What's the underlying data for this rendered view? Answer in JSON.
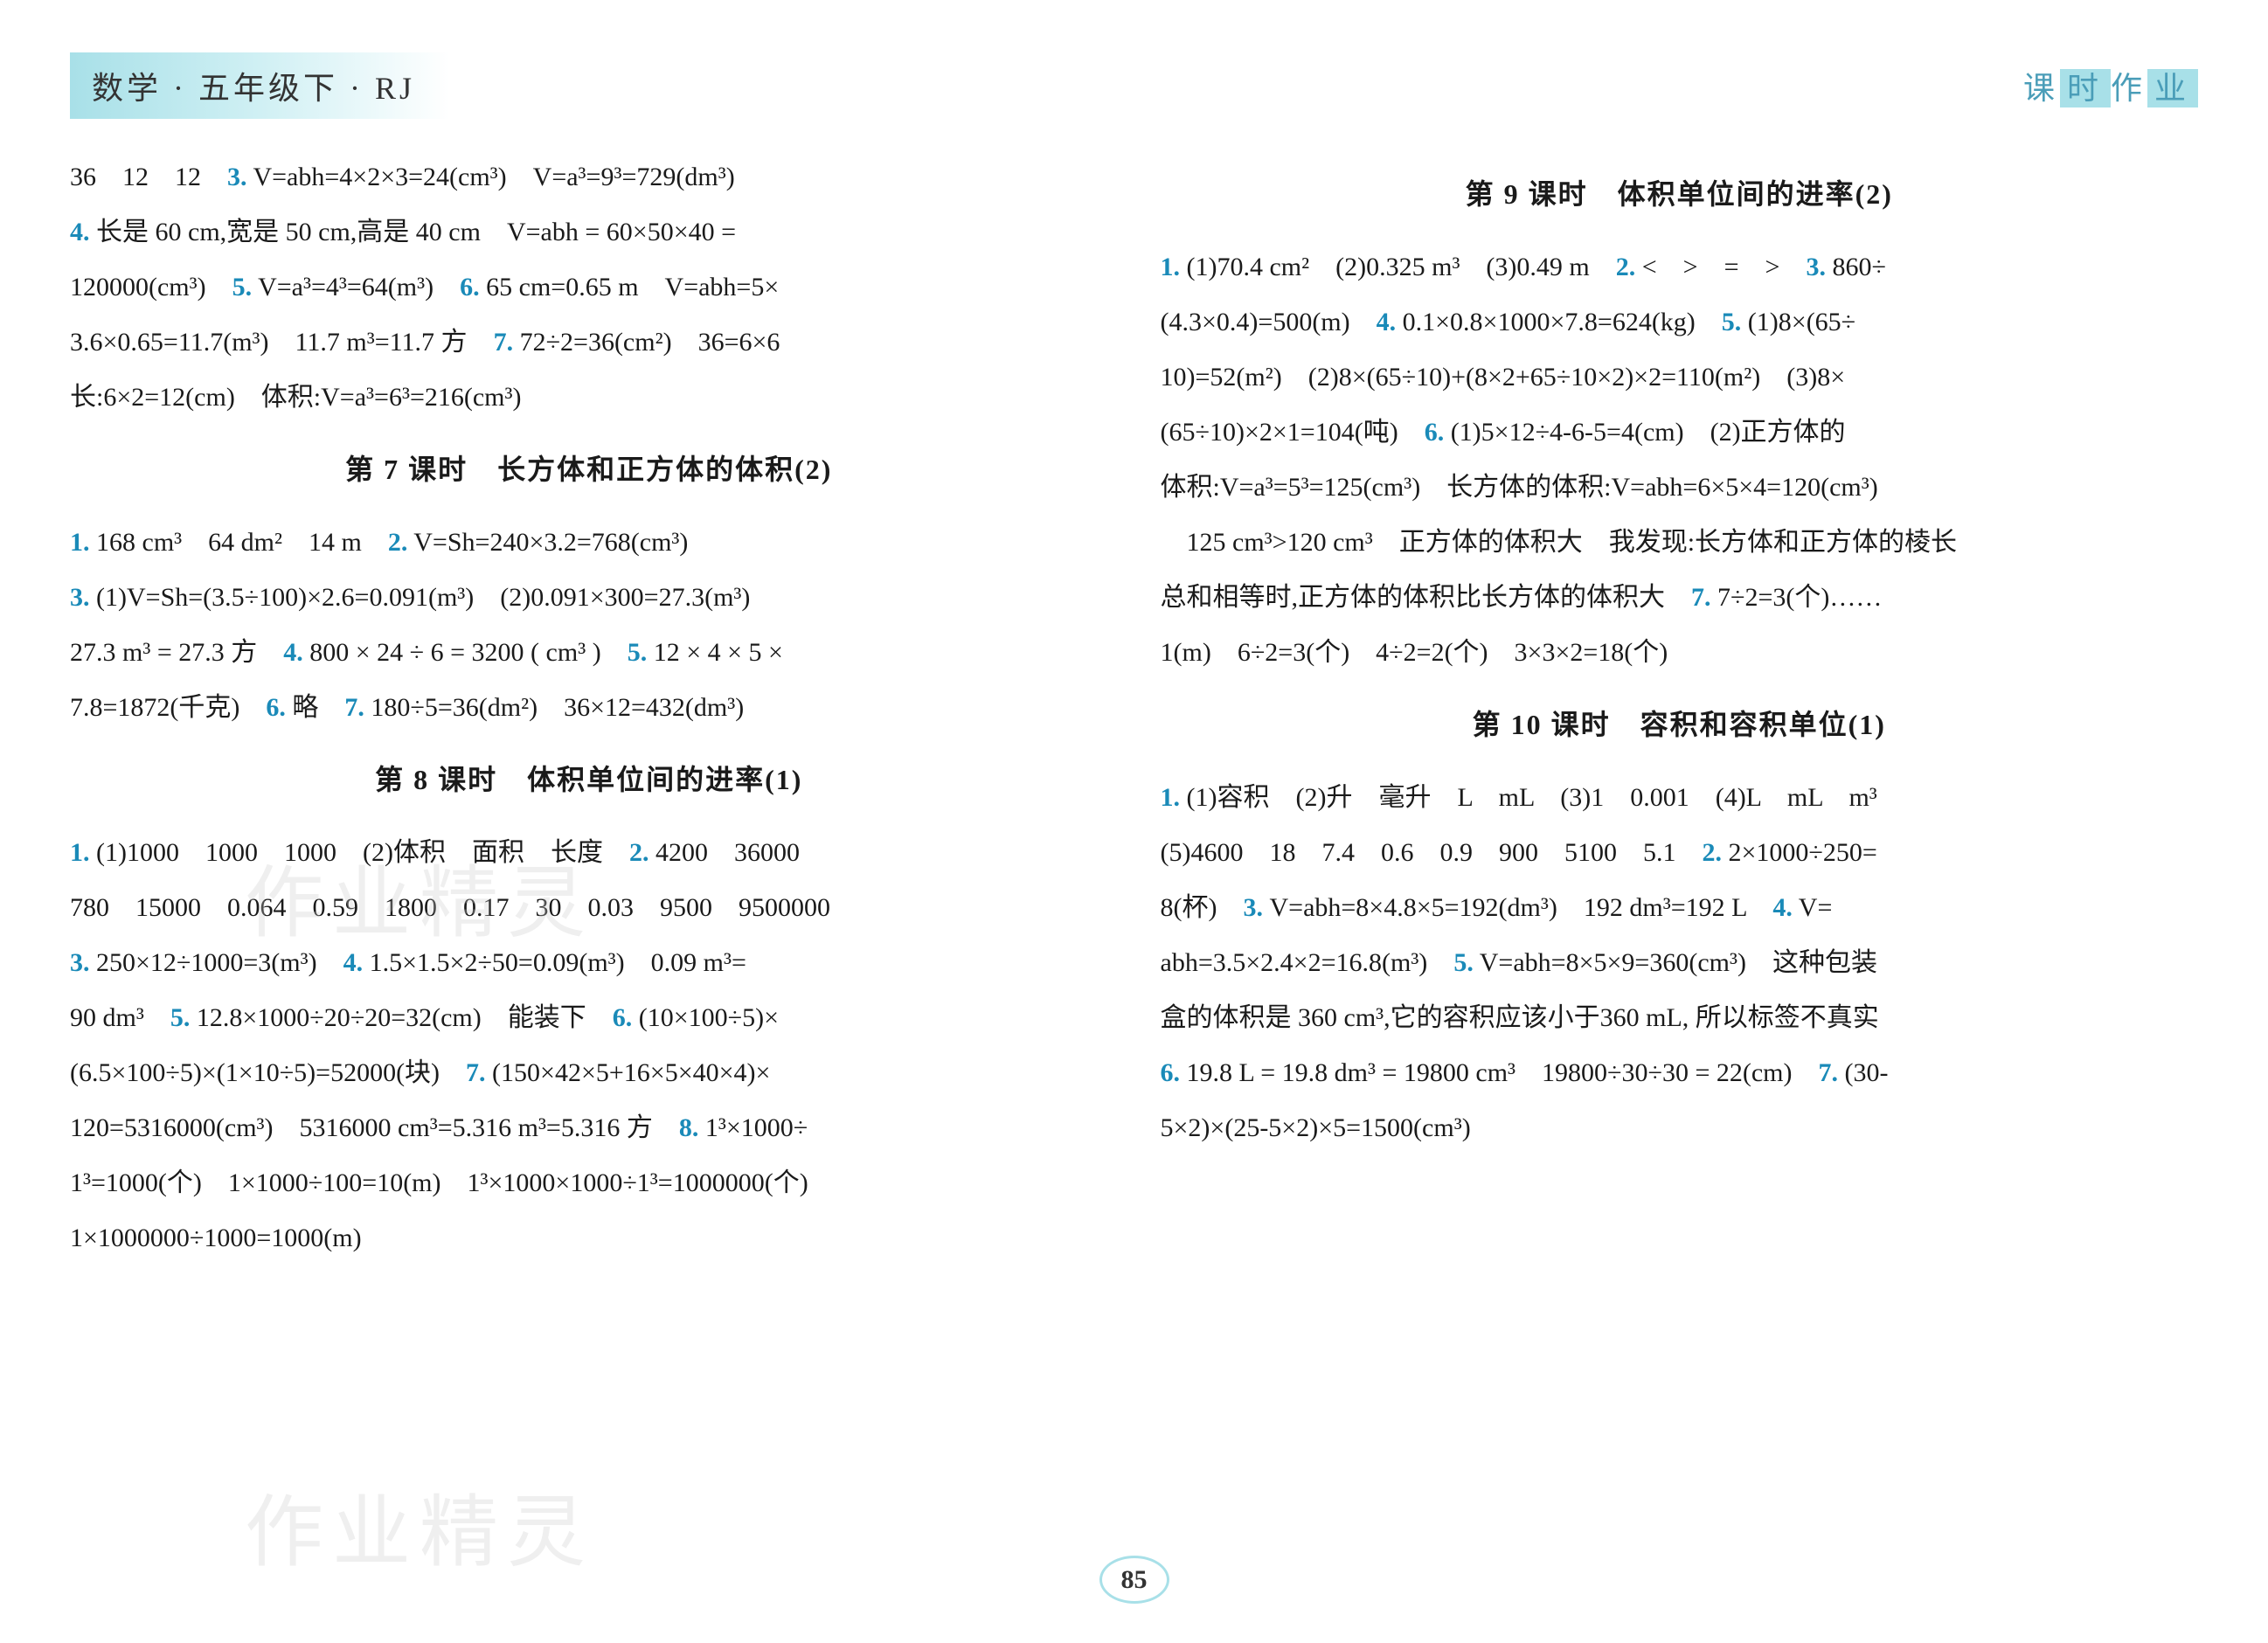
{
  "header": {
    "left": "数学 · 五年级下 · RJ",
    "right_prefix": "课",
    "right_hl1": "时",
    "right_mid": "作",
    "right_hl2": "业"
  },
  "left_column": {
    "line1_pre": "36　12　12　",
    "line1_num": "3.",
    "line1_post": " V=abh=4×2×3=24(cm³)　V=a³=9³=729(dm³)",
    "line2_num": "4.",
    "line2_post": " 长是 60 cm,宽是 50 cm,高是 40 cm　V=abh = 60×50×40 =",
    "line3_pre": "120000(cm³)　",
    "line3_num": "5.",
    "line3_mid": " V=a³=4³=64(m³)　",
    "line3_num2": "6.",
    "line3_post": " 65 cm=0.65 m　V=abh=5×",
    "line4_pre": "3.6×0.65=11.7(m³)　11.7 m³=11.7 方　",
    "line4_num": "7.",
    "line4_post": " 72÷2=36(cm²)　36=6×6",
    "line5": "长:6×2=12(cm)　体积:V=a³=6³=216(cm³)",
    "title7": "第 7 课时　长方体和正方体的体积(2)",
    "l7_1_num": "1.",
    "l7_1": " 168 cm³　64 dm²　14 m　",
    "l7_2_num": "2.",
    "l7_2": " V=Sh=240×3.2=768(cm³)",
    "l7_3_num": "3.",
    "l7_3": " (1)V=Sh=(3.5÷100)×2.6=0.091(m³)　(2)0.091×300=27.3(m³)",
    "l7_4_pre": "27.3 m³ = 27.3 方　",
    "l7_4_num": "4.",
    "l7_4_mid": " 800 × 24 ÷ 6 = 3200 ( cm³ )　",
    "l7_5_num": "5.",
    "l7_5": " 12 × 4 × 5 ×",
    "l7_6_pre": "7.8=1872(千克)　",
    "l7_6_num": "6.",
    "l7_6_mid": " 略　",
    "l7_7_num": "7.",
    "l7_7": " 180÷5=36(dm²)　36×12=432(dm³)",
    "title8": "第 8 课时　体积单位间的进率(1)",
    "l8_1_num": "1.",
    "l8_1": " (1)1000　1000　1000　(2)体积　面积　长度　",
    "l8_2_num": "2.",
    "l8_2": " 4200　36000",
    "l8_line2": "780　15000　0.064　0.59　1800　0.17　30　0.03　9500　9500000",
    "l8_3_num": "3.",
    "l8_3": " 250×12÷1000=3(m³)　",
    "l8_4_num": "4.",
    "l8_4": " 1.5×1.5×2÷50=0.09(m³)　0.09 m³=",
    "l8_line4_pre": "90 dm³　",
    "l8_5_num": "5.",
    "l8_5": " 12.8×1000÷20÷20=32(cm)　能装下　",
    "l8_6_num": "6.",
    "l8_6": " (10×100÷5)×",
    "l8_line5_pre": "(6.5×100÷5)×(1×10÷5)=52000(块)　",
    "l8_7_num": "7.",
    "l8_7": " (150×42×5+16×5×40×4)×",
    "l8_line6_pre": "120=5316000(cm³)　5316000 cm³=5.316 m³=5.316 方　",
    "l8_8_num": "8.",
    "l8_8": " 1³×1000÷",
    "l8_line7": "1³=1000(个)　1×1000÷100=10(m)　1³×1000×1000÷1³=1000000(个)",
    "l8_line8": "1×1000000÷1000=1000(m)"
  },
  "right_column": {
    "title9": "第 9 课时　体积单位间的进率(2)",
    "l9_1_num": "1.",
    "l9_1": " (1)70.4 cm²　(2)0.325 m³　(3)0.49 m　",
    "l9_2_num": "2.",
    "l9_2": " <　>　=　>　",
    "l9_3_num": "3.",
    "l9_3": " 860÷",
    "l9_line2_pre": "(4.3×0.4)=500(m)　",
    "l9_4_num": "4.",
    "l9_4": " 0.1×0.8×1000×7.8=624(kg)　",
    "l9_5_num": "5.",
    "l9_5": " (1)8×(65÷",
    "l9_line3": "10)=52(m²)　(2)8×(65÷10)+(8×2+65÷10×2)×2=110(m²)　(3)8×",
    "l9_line4_pre": "(65÷10)×2×1=104(吨)　",
    "l9_6_num": "6.",
    "l9_6": " (1)5×12÷4-6-5=4(cm)　(2)正方体的",
    "l9_line5": "体积:V=a³=5³=125(cm³)　长方体的体积:V=abh=6×5×4=120(cm³)",
    "l9_line6": "　125 cm³>120 cm³　正方体的体积大　我发现:长方体和正方体的棱长",
    "l9_line7_pre": "总和相等时,正方体的体积比长方体的体积大　",
    "l9_7_num": "7.",
    "l9_7": " 7÷2=3(个)……",
    "l9_line8": "1(m)　6÷2=3(个)　4÷2=2(个)　3×3×2=18(个)",
    "title10": "第 10 课时　容积和容积单位(1)",
    "l10_1_num": "1.",
    "l10_1": " (1)容积　(2)升　毫升　L　mL　(3)1　0.001　(4)L　mL　m³",
    "l10_line2_pre": "(5)4600　18　7.4　0.6　0.9　900　5100　5.1　",
    "l10_2_num": "2.",
    "l10_2": " 2×1000÷250=",
    "l10_line3_pre": "8(杯)　",
    "l10_3_num": "3.",
    "l10_3": " V=abh=8×4.8×5=192(dm³)　192 dm³=192 L　",
    "l10_4_num": "4.",
    "l10_4": " V=",
    "l10_line4_pre": "abh=3.5×2.4×2=16.8(m³)　",
    "l10_5_num": "5.",
    "l10_5": " V=abh=8×5×9=360(cm³)　这种包装",
    "l10_line5": "盒的体积是 360 cm³,它的容积应该小于360 mL, 所以标签不真实",
    "l10_6_num": "6.",
    "l10_6": " 19.8 L = 19.8 dm³ = 19800 cm³　19800÷30÷30 = 22(cm)　",
    "l10_7_num": "7.",
    "l10_7": " (30-",
    "l10_line7": "5×2)×(25-5×2)×5=1500(cm³)"
  },
  "page_number": "85",
  "watermark_text": "作业精灵",
  "colors": {
    "qnum_color": "#1a8ab8",
    "header_bg": "#a8e0e8",
    "text_color": "#1a1a1a"
  }
}
